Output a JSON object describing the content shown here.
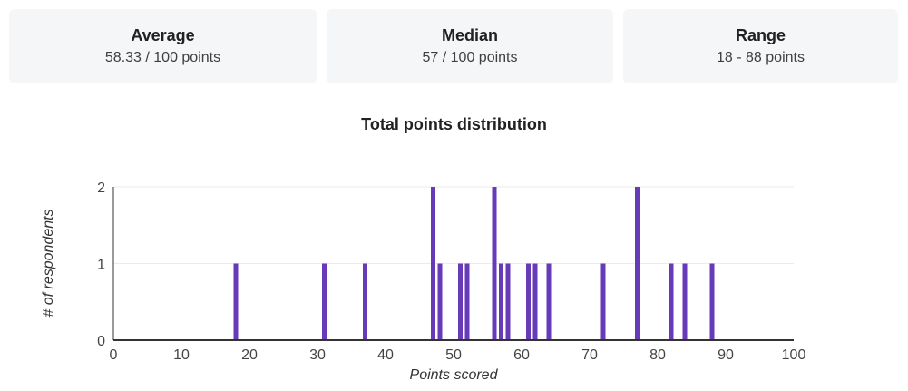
{
  "stats": [
    {
      "label": "Average",
      "value": "58.33 / 100 points"
    },
    {
      "label": "Median",
      "value": "57 / 100 points"
    },
    {
      "label": "Range",
      "value": "18 - 88 points"
    }
  ],
  "colors": {
    "bar": "#673ab7",
    "axis": "#333333",
    "grid": "#ebebeb",
    "tick_text": "#444444"
  },
  "chart_data": {
    "type": "bar",
    "title": "Total points distribution",
    "xlabel": "Points scored",
    "ylabel": "# of respondents",
    "xlim": [
      0,
      100
    ],
    "ylim": [
      0,
      2
    ],
    "x_ticks": [
      0,
      10,
      20,
      30,
      40,
      50,
      60,
      70,
      80,
      90,
      100
    ],
    "y_ticks": [
      0,
      1,
      2
    ],
    "grid": true,
    "legend": "none",
    "points": [
      {
        "x": 18,
        "y": 1
      },
      {
        "x": 31,
        "y": 1
      },
      {
        "x": 37,
        "y": 1
      },
      {
        "x": 47,
        "y": 2
      },
      {
        "x": 48,
        "y": 1
      },
      {
        "x": 51,
        "y": 1
      },
      {
        "x": 52,
        "y": 1
      },
      {
        "x": 56,
        "y": 2
      },
      {
        "x": 57,
        "y": 1
      },
      {
        "x": 58,
        "y": 1
      },
      {
        "x": 61,
        "y": 1
      },
      {
        "x": 62,
        "y": 1
      },
      {
        "x": 64,
        "y": 1
      },
      {
        "x": 72,
        "y": 1
      },
      {
        "x": 77,
        "y": 2
      },
      {
        "x": 82,
        "y": 1
      },
      {
        "x": 84,
        "y": 1
      },
      {
        "x": 88,
        "y": 1
      }
    ]
  }
}
